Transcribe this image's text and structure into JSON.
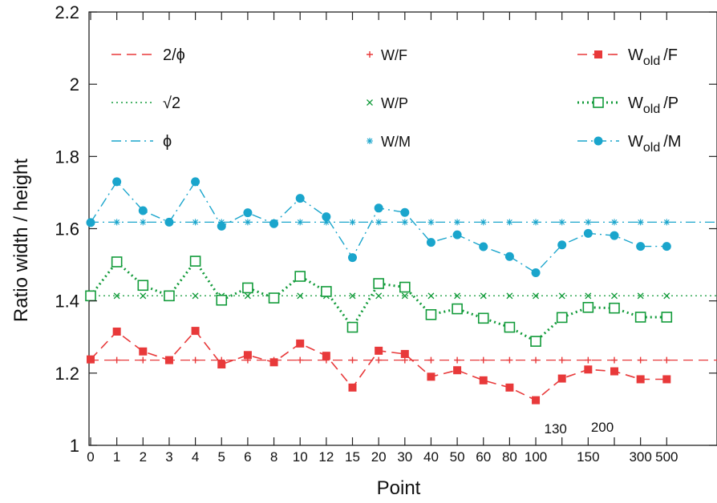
{
  "chart_data": {
    "type": "line",
    "xlabel": "Point",
    "ylabel": "Ratio  width / height",
    "ylim": [
      1,
      2.2
    ],
    "yticks": [
      "1",
      "1.2",
      "1.4",
      "1.6",
      "1.8",
      "2",
      "2.2"
    ],
    "ytick_values": [
      1,
      1.2,
      1.4,
      1.6,
      1.8,
      2,
      2.2
    ],
    "categories": [
      "0",
      "1",
      "2",
      "3",
      "4",
      "5",
      "6",
      "8",
      "10",
      "12",
      "15",
      "20",
      "30",
      "40",
      "50",
      "60",
      "80",
      "100",
      "",
      "150",
      "",
      "300",
      "500"
    ],
    "extra_xlabels": [
      "130",
      "200"
    ],
    "reference_lines": [
      {
        "name": "2/ϕ",
        "value": 1.236,
        "color": "#e8393a",
        "dash": "12,7"
      },
      {
        "name": "√2",
        "value": 1.4142,
        "color": "#129b3a",
        "dash": "2,4"
      },
      {
        "name": "ϕ",
        "value": 1.618,
        "color": "#1aa5cc",
        "dash": "12,5,2,5"
      }
    ],
    "series": [
      {
        "name": "W/F",
        "marker": "plus",
        "color": "#e8393a",
        "values": [
          1.236,
          1.236,
          1.236,
          1.236,
          1.236,
          1.236,
          1.236,
          1.236,
          1.236,
          1.236,
          1.236,
          1.236,
          1.236,
          1.236,
          1.236,
          1.236,
          1.236,
          1.236,
          1.236,
          1.236,
          1.236,
          1.236,
          1.236
        ]
      },
      {
        "name": "W/P",
        "marker": "x",
        "color": "#129b3a",
        "values": [
          1.414,
          1.414,
          1.414,
          1.414,
          1.414,
          1.414,
          1.414,
          1.414,
          1.414,
          1.414,
          1.414,
          1.414,
          1.414,
          1.414,
          1.414,
          1.414,
          1.414,
          1.414,
          1.414,
          1.414,
          1.414,
          1.414,
          1.414
        ]
      },
      {
        "name": "W/M",
        "marker": "asterisk",
        "color": "#1aa5cc",
        "values": [
          1.618,
          1.618,
          1.618,
          1.618,
          1.618,
          1.618,
          1.618,
          1.618,
          1.618,
          1.618,
          1.618,
          1.618,
          1.618,
          1.618,
          1.618,
          1.618,
          1.618,
          1.618,
          1.618,
          1.618,
          1.618,
          1.618,
          1.618
        ]
      },
      {
        "name": "W_old/F",
        "marker": "filled-square",
        "color": "#e8393a",
        "dash": "12,7",
        "values": [
          1.238,
          1.315,
          1.26,
          1.236,
          1.317,
          1.224,
          1.25,
          1.23,
          1.282,
          1.248,
          1.16,
          1.262,
          1.253,
          1.19,
          1.208,
          1.18,
          1.16,
          1.125,
          1.185,
          1.21,
          1.205,
          1.183,
          1.183
        ]
      },
      {
        "name": "W_old/P",
        "marker": "open-square",
        "color": "#129b3a",
        "dash": "2,4",
        "values": [
          1.414,
          1.508,
          1.443,
          1.414,
          1.51,
          1.402,
          1.436,
          1.408,
          1.468,
          1.426,
          1.327,
          1.448,
          1.438,
          1.362,
          1.378,
          1.352,
          1.327,
          1.288,
          1.354,
          1.382,
          1.38,
          1.355,
          1.355
        ]
      },
      {
        "name": "W_old/M",
        "marker": "filled-circle",
        "color": "#1aa5cc",
        "dash": "12,5,2,5",
        "values": [
          1.617,
          1.73,
          1.65,
          1.618,
          1.73,
          1.607,
          1.644,
          1.614,
          1.684,
          1.633,
          1.52,
          1.657,
          1.645,
          1.562,
          1.583,
          1.55,
          1.523,
          1.478,
          1.555,
          1.587,
          1.581,
          1.551,
          1.551
        ]
      }
    ]
  },
  "legend": {
    "ref_labels": [
      "2/ϕ",
      "√2",
      "ϕ"
    ],
    "marker_labels": [
      "W/F",
      "W/P",
      "W/M"
    ],
    "old_prefix": "W",
    "old_sub": "old",
    "old_suffixes": [
      "/F",
      "/P",
      "/M"
    ]
  }
}
